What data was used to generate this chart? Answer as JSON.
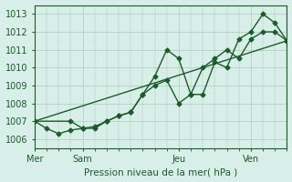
{
  "background_color": "#d8eee8",
  "grid_color": "#aaccbb",
  "line_color": "#1a5c2a",
  "marker_color": "#1a5c2a",
  "ylabel_ticks": [
    1006,
    1007,
    1008,
    1009,
    1010,
    1011,
    1012,
    1013
  ],
  "xlabel": "Pression niveau de la mer( hPa )",
  "day_labels": [
    "Mer",
    "Sam",
    "Jeu",
    "Ven"
  ],
  "day_positions": [
    0,
    4,
    12,
    18
  ],
  "ylim": [
    1005.5,
    1013.5
  ],
  "xlim": [
    0,
    21
  ],
  "series1_x": [
    0,
    1,
    2,
    3,
    4,
    5,
    6,
    7,
    8,
    9,
    10,
    11,
    12,
    13,
    14,
    15,
    16,
    17,
    18,
    19,
    20,
    21
  ],
  "series1_y": [
    1007.0,
    1006.6,
    1006.3,
    1006.5,
    1006.6,
    1006.7,
    1007.0,
    1007.3,
    1007.5,
    1008.5,
    1009.0,
    1009.3,
    1008.0,
    1008.5,
    1010.0,
    1010.5,
    1011.0,
    1010.5,
    1011.6,
    1012.0,
    1012.0,
    1011.5
  ],
  "series2_x": [
    0,
    3,
    4,
    5,
    6,
    7,
    8,
    9,
    10,
    11,
    12,
    13,
    14,
    15,
    16,
    17,
    18,
    19,
    20,
    21
  ],
  "series2_y": [
    1007.0,
    1007.0,
    1006.6,
    1006.6,
    1007.0,
    1007.3,
    1007.5,
    1008.5,
    1009.5,
    1011.0,
    1010.5,
    1008.5,
    1008.5,
    1010.3,
    1010.0,
    1011.6,
    1012.0,
    1013.0,
    1012.5,
    1011.5
  ],
  "series3_x": [
    0,
    21
  ],
  "series3_y": [
    1007.0,
    1011.5
  ]
}
